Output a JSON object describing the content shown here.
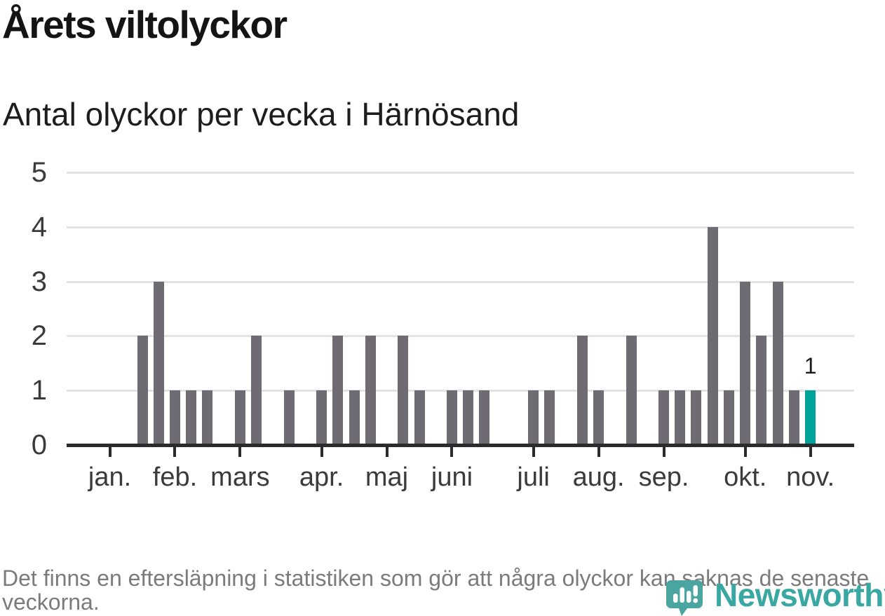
{
  "header": {
    "title": "Årets viltolyckor",
    "subtitle": "Antal olyckor per vecka i Härnösand"
  },
  "chart_data": {
    "type": "bar",
    "title": "Årets viltolyckor",
    "subtitle": "Antal olyckor per vecka i Härnösand",
    "x_unit": "vecka",
    "first_week": 1,
    "values": [
      0,
      0,
      0,
      2,
      3,
      1,
      1,
      1,
      0,
      1,
      2,
      0,
      1,
      0,
      1,
      2,
      1,
      2,
      0,
      2,
      1,
      0,
      1,
      1,
      1,
      0,
      0,
      1,
      1,
      0,
      2,
      1,
      0,
      2,
      0,
      1,
      1,
      1,
      4,
      1,
      3,
      2,
      3,
      1,
      1
    ],
    "months": [
      {
        "label": "jan.",
        "week": 2
      },
      {
        "label": "feb.",
        "week": 6
      },
      {
        "label": "mars",
        "week": 10
      },
      {
        "label": "apr.",
        "week": 15
      },
      {
        "label": "maj",
        "week": 19
      },
      {
        "label": "juni",
        "week": 23
      },
      {
        "label": "juli",
        "week": 28
      },
      {
        "label": "aug.",
        "week": 32
      },
      {
        "label": "sep.",
        "week": 36
      },
      {
        "label": "okt.",
        "week": 41
      },
      {
        "label": "nov.",
        "week": 45
      }
    ],
    "yticks": [
      0,
      1,
      2,
      3,
      4,
      5
    ],
    "ylim": [
      0,
      5
    ],
    "grid": "horizontal",
    "legend": "none",
    "highlight": {
      "week": 45,
      "value": 1,
      "label": "1"
    },
    "colors": {
      "bar": "#6e6b72",
      "highlight": "#00a39a",
      "axis": "#2b2b2b",
      "gridline": "#e3e3e3"
    }
  },
  "footer": {
    "note": "Det finns en eftersläpning i statistiken som gör att några olyckor kan saknas de senaste veckorna.",
    "logo_icon": "newsworthy-pin-icon",
    "logo_text": "Newsworthy",
    "logo_color": "#39a7a2"
  }
}
